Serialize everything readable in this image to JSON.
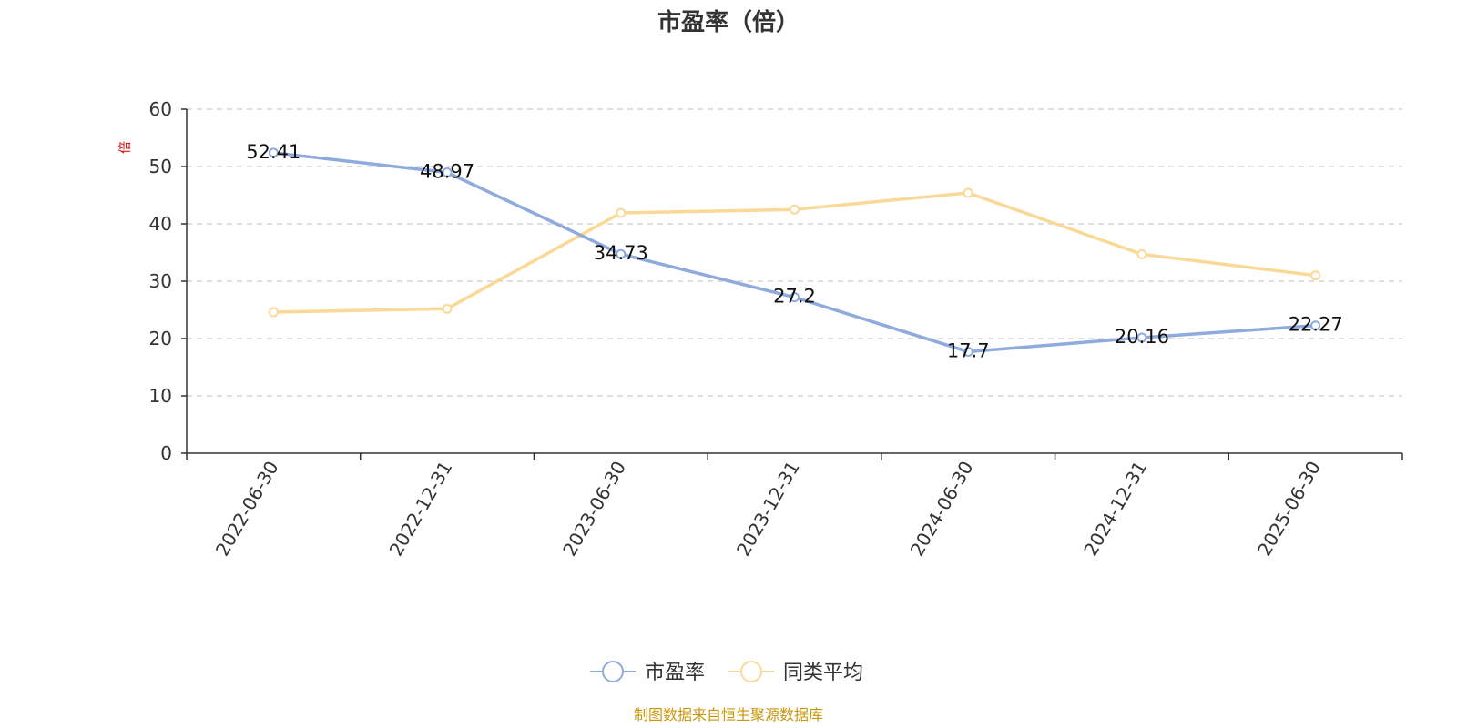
{
  "chart_data": {
    "type": "line",
    "title": "市盈率（倍）",
    "ylabel": "倍",
    "ylim": [
      0,
      60
    ],
    "yticks": [
      0,
      10,
      20,
      30,
      40,
      50,
      60
    ],
    "categories": [
      "2022-06-30",
      "2022-12-31",
      "2023-06-30",
      "2023-12-31",
      "2024-06-30",
      "2024-12-31",
      "2025-06-30"
    ],
    "series": [
      {
        "name": "市盈率",
        "values": [
          52.41,
          48.97,
          34.73,
          27.2,
          17.7,
          20.16,
          22.27
        ],
        "labels": [
          "52.41",
          "48.97",
          "34.73",
          "27.2",
          "17.7",
          "20.16",
          "22.27"
        ],
        "color": "#8FAADC"
      },
      {
        "name": "同类平均",
        "values": [
          24.6,
          25.2,
          41.9,
          42.5,
          45.4,
          34.7,
          31.0
        ],
        "color": "#FAD896"
      }
    ],
    "grid": true,
    "legend": "bottom-center"
  },
  "source": "制图数据来自恒生聚源数据库",
  "colors": {
    "axis": "#333333",
    "grid": "#cccccc",
    "ylabel": "#dd0000",
    "source": "#c8960a"
  }
}
